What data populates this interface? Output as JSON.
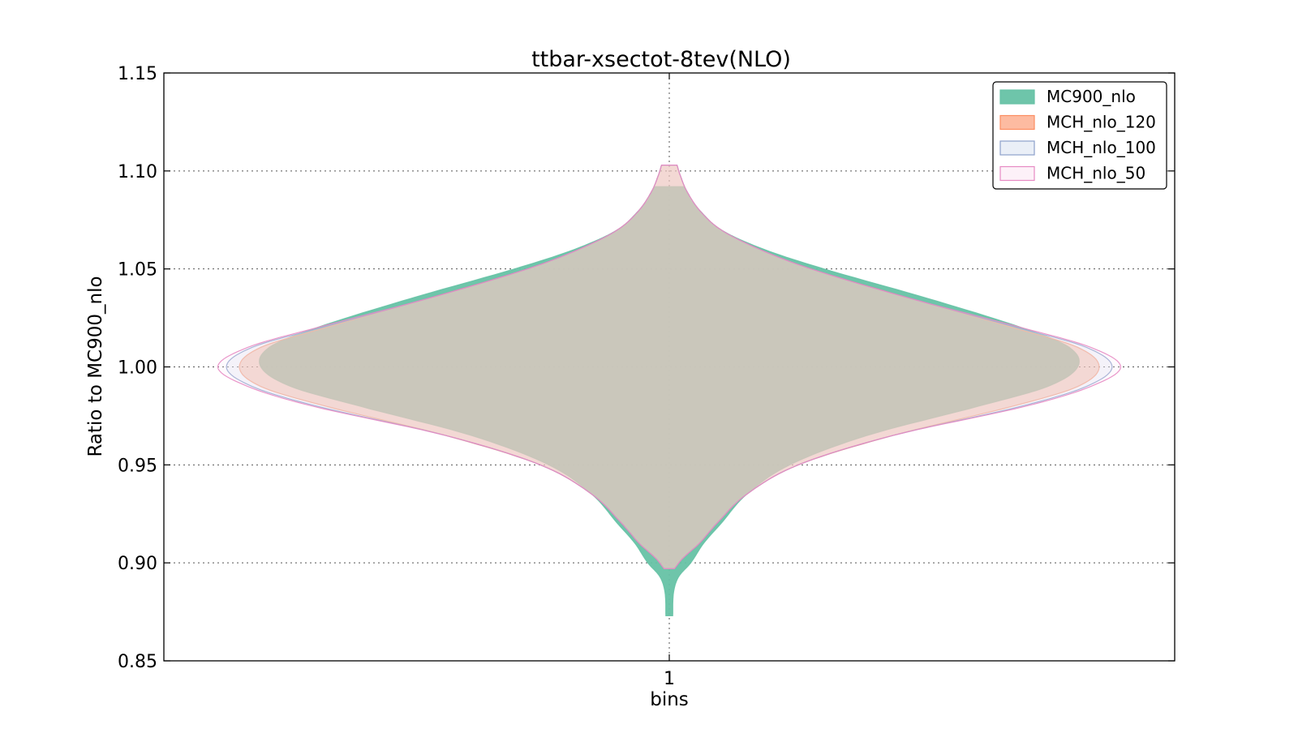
{
  "chart_data": {
    "type": "violin",
    "title": "ttbar-xsectot-8tev(NLO)",
    "xlabel": "bins",
    "ylabel": "Ratio to MC900_nlo",
    "categories": [
      "1"
    ],
    "ylim": [
      0.85,
      1.15
    ],
    "yticks": [
      0.85,
      0.9,
      0.95,
      1.0,
      1.05,
      1.1,
      1.15
    ],
    "ytick_labels": [
      "0.85",
      "0.90",
      "0.95",
      "1.00",
      "1.05",
      "1.10",
      "1.15"
    ],
    "grid": true,
    "legend_position": "top-right",
    "series": [
      {
        "name": "MC900_nlo",
        "fill": "#66c2a5",
        "edge": "#66c2a5",
        "opacity": 0.95,
        "min": 0.873,
        "max": 1.092,
        "profile": [
          [
            0.873,
            0.008
          ],
          [
            0.885,
            0.01
          ],
          [
            0.893,
            0.022
          ],
          [
            0.9,
            0.05
          ],
          [
            0.91,
            0.08
          ],
          [
            0.92,
            0.12
          ],
          [
            0.935,
            0.18
          ],
          [
            0.95,
            0.28
          ],
          [
            0.965,
            0.46
          ],
          [
            0.98,
            0.72
          ],
          [
            0.99,
            0.88
          ],
          [
            1.0,
            0.95
          ],
          [
            1.01,
            0.93
          ],
          [
            1.02,
            0.82
          ],
          [
            1.035,
            0.6
          ],
          [
            1.05,
            0.36
          ],
          [
            1.06,
            0.22
          ],
          [
            1.07,
            0.12
          ],
          [
            1.08,
            0.07
          ],
          [
            1.085,
            0.05
          ],
          [
            1.092,
            0.035
          ]
        ]
      },
      {
        "name": "MCH_nlo_120",
        "fill": "#fc8d62",
        "edge": "#fc8d62",
        "opacity": 0.45,
        "min": 0.897,
        "max": 1.103,
        "profile": [
          [
            0.897,
            0.012
          ],
          [
            0.902,
            0.03
          ],
          [
            0.91,
            0.07
          ],
          [
            0.92,
            0.11
          ],
          [
            0.935,
            0.18
          ],
          [
            0.95,
            0.3
          ],
          [
            0.965,
            0.52
          ],
          [
            0.98,
            0.8
          ],
          [
            0.99,
            0.95
          ],
          [
            1.0,
            1.0
          ],
          [
            1.01,
            0.95
          ],
          [
            1.02,
            0.8
          ],
          [
            1.035,
            0.56
          ],
          [
            1.05,
            0.33
          ],
          [
            1.06,
            0.21
          ],
          [
            1.07,
            0.12
          ],
          [
            1.08,
            0.07
          ],
          [
            1.09,
            0.04
          ],
          [
            1.098,
            0.025
          ],
          [
            1.103,
            0.018
          ]
        ]
      },
      {
        "name": "MCH_nlo_100",
        "fill": "#dce5f2",
        "edge": "#8da0cb",
        "opacity": 0.35,
        "min": 0.897,
        "max": 1.103,
        "profile": [
          [
            0.897,
            0.012
          ],
          [
            0.902,
            0.03
          ],
          [
            0.91,
            0.07
          ],
          [
            0.92,
            0.11
          ],
          [
            0.935,
            0.18
          ],
          [
            0.95,
            0.3
          ],
          [
            0.965,
            0.52
          ],
          [
            0.98,
            0.82
          ],
          [
            0.99,
            0.97
          ],
          [
            1.0,
            1.03
          ],
          [
            1.01,
            0.97
          ],
          [
            1.02,
            0.81
          ],
          [
            1.035,
            0.56
          ],
          [
            1.05,
            0.33
          ],
          [
            1.06,
            0.21
          ],
          [
            1.07,
            0.12
          ],
          [
            1.08,
            0.07
          ],
          [
            1.09,
            0.04
          ],
          [
            1.098,
            0.025
          ],
          [
            1.103,
            0.018
          ]
        ]
      },
      {
        "name": "MCH_nlo_50",
        "fill": "#fbe8f4",
        "edge": "#e78ac3",
        "opacity": 0.2,
        "min": 0.897,
        "max": 1.103,
        "profile": [
          [
            0.897,
            0.012
          ],
          [
            0.902,
            0.03
          ],
          [
            0.91,
            0.07
          ],
          [
            0.92,
            0.11
          ],
          [
            0.935,
            0.18
          ],
          [
            0.95,
            0.3
          ],
          [
            0.965,
            0.52
          ],
          [
            0.98,
            0.83
          ],
          [
            0.99,
            0.98
          ],
          [
            1.0,
            1.05
          ],
          [
            1.01,
            0.98
          ],
          [
            1.02,
            0.82
          ],
          [
            1.035,
            0.56
          ],
          [
            1.05,
            0.33
          ],
          [
            1.06,
            0.21
          ],
          [
            1.07,
            0.12
          ],
          [
            1.08,
            0.07
          ],
          [
            1.09,
            0.04
          ],
          [
            1.098,
            0.025
          ],
          [
            1.103,
            0.018
          ]
        ]
      }
    ]
  }
}
